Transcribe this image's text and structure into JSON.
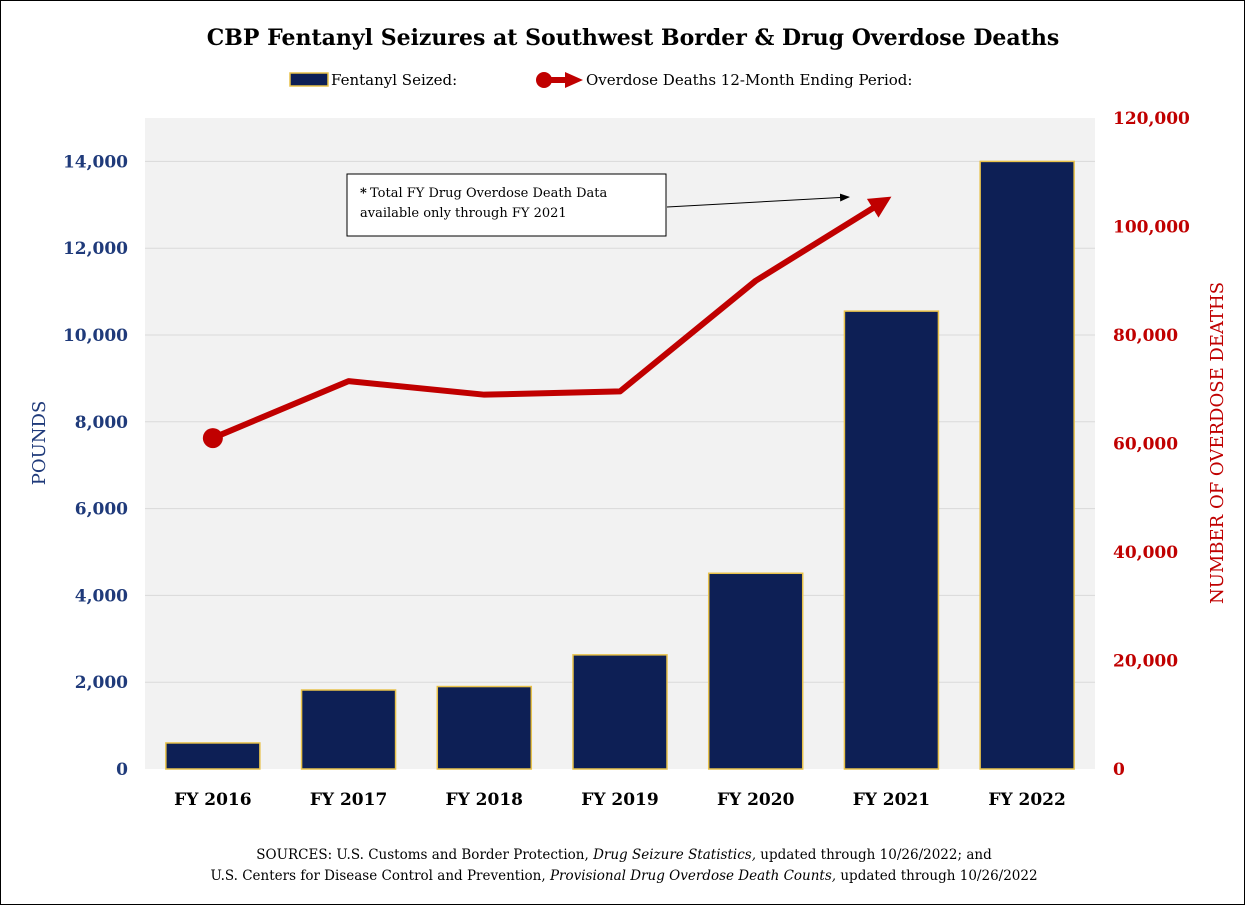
{
  "colors": {
    "bar_fill": "#0d1f55",
    "bar_edge": "#e8c24a",
    "line": "#c00000",
    "left_axis": "#1f3a7a",
    "right_axis": "#c00000",
    "plot_bg": "#f2f2f2",
    "grid": "#d9d9d9"
  },
  "chart_data": {
    "type": "bar",
    "title": "CBP Fentanyl Seizures at Southwest Border & Drug Overdose Deaths",
    "categories": [
      "FY 2016",
      "FY 2017",
      "FY 2018",
      "FY 2019",
      "FY 2020",
      "FY 2021",
      "FY 2022"
    ],
    "ylabel": "POUNDS",
    "ylabel_right": "NUMBER OF OVERDOSE DEATHS",
    "ylim": [
      0,
      15000
    ],
    "ylim_right": [
      0,
      120000
    ],
    "yticks": [
      "0",
      "2,000",
      "4,000",
      "6,000",
      "8,000",
      "10,000",
      "12,000",
      "14,000"
    ],
    "yticks_right": [
      "0",
      "20,000",
      "40,000",
      "60,000",
      "80,000",
      "100,000",
      "120,000"
    ],
    "legend_position": "top-center",
    "grid": true,
    "series": [
      {
        "name": "Fentanyl Seized:",
        "type": "bar",
        "axis": "left",
        "values": [
          600,
          1820,
          1900,
          2630,
          4510,
          10550,
          14000
        ]
      },
      {
        "name": "Overdose Deaths 12-Month Ending Period:",
        "type": "line",
        "axis": "right",
        "values": [
          61000,
          71500,
          69000,
          69600,
          90000,
          105500,
          null
        ]
      }
    ],
    "annotation": {
      "star": "*",
      "line1": "Total FY Drug Overdose Death Data",
      "line2": "available only through FY 2021"
    }
  },
  "sources": {
    "line1_a": "SOURCES:  U.S. Customs and Border Protection, ",
    "line1_b": "Drug Seizure Statistics,",
    "line1_c": " updated through 10/26/2022; and",
    "line2_a": "U.S. Centers for Disease Control and Prevention, ",
    "line2_b": "Provisional Drug Overdose Death Counts,",
    "line2_c": " updated through 10/26/2022"
  }
}
